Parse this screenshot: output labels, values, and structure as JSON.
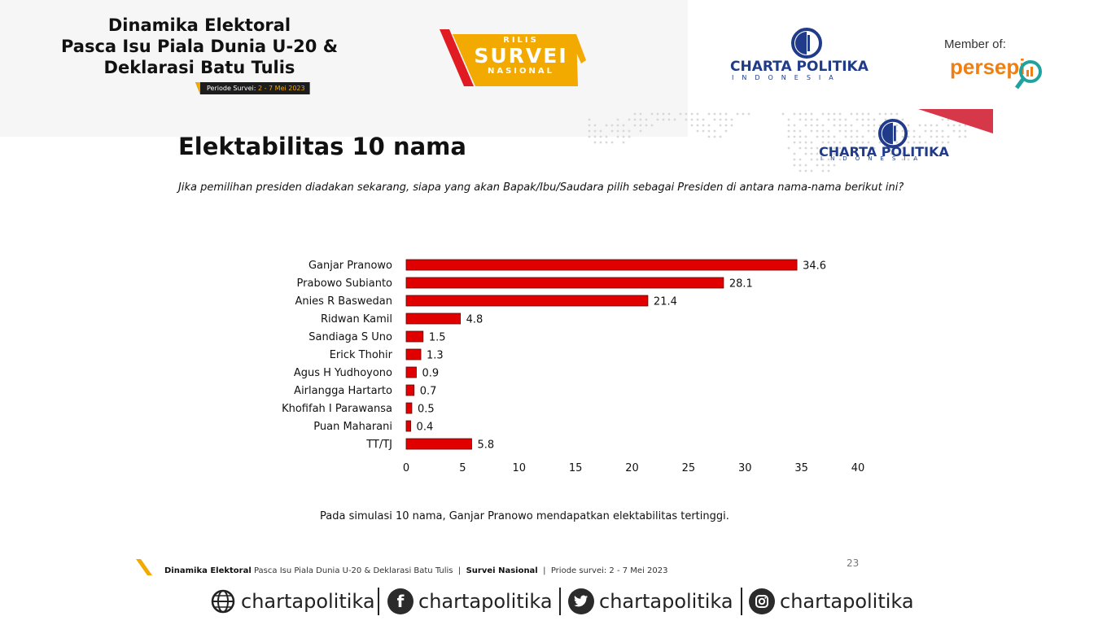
{
  "header": {
    "title_lines": [
      "Dinamika Elektoral",
      "Pasca Isu Piala Dunia U-20 &",
      "Deklarasi Batu Tulis"
    ],
    "period_label": "Periode Survei:",
    "period_value": "2 - 7 Mei 2023",
    "badge_small_top": "RILIS",
    "badge_big": "SURVEI",
    "badge_small_bottom": "NASIONAL",
    "brand_name": "CHARTA POLITIKA",
    "brand_sub": "INDONESIA",
    "member_label": "Member of:",
    "member_org": "persepi"
  },
  "slide": {
    "title": "Elektabilitas 10 nama",
    "question": "Jika pemilihan presiden diadakan sekarang, siapa yang akan Bapak/Ibu/Saudara pilih sebagai Presiden di antara nama-nama berikut ini?",
    "conclusion": "Pada simulasi 10 nama, Ganjar Pranowo mendapatkan elektabilitas tertinggi.",
    "page_number": "23",
    "brand_name": "CHARTA POLITIKA",
    "brand_sub": "INDONESIA"
  },
  "chart_data": {
    "type": "bar",
    "orientation": "horizontal",
    "categories": [
      "Ganjar Pranowo",
      "Prabowo Subianto",
      "Anies R Baswedan",
      "Ridwan Kamil",
      "Sandiaga S Uno",
      "Erick Thohir",
      "Agus H Yudhoyono",
      "Airlangga Hartarto",
      "Khofifah I Parawansa",
      "Puan Maharani",
      "TT/TJ"
    ],
    "values": [
      34.6,
      28.1,
      21.4,
      4.8,
      1.5,
      1.3,
      0.9,
      0.7,
      0.5,
      0.4,
      5.8
    ],
    "value_labels": [
      "34.6",
      "28.1",
      "21.4",
      "4.8",
      "1.5",
      "1.3",
      "0.9",
      "0.7",
      "0.5",
      "0.4",
      "5.8"
    ],
    "xlim": [
      0,
      40
    ],
    "xticks": [
      "0",
      "5",
      "10",
      "15",
      "20",
      "25",
      "30",
      "35",
      "40"
    ],
    "title": "",
    "xlabel": "",
    "ylabel": "",
    "grid": false,
    "bar_color": "#e00000"
  },
  "footer": {
    "bold_part": "Dinamika Elektoral",
    "rest_part": "Pasca Isu Piala Dunia U-20 & Deklarasi Batu Tulis",
    "sep1": "|",
    "survey_label": "Survei Nasional",
    "sep2": "|",
    "period": "Priode survei: 2 - 7 Mei 2023"
  },
  "social": [
    {
      "icon": "globe-icon",
      "handle": "chartapolitika"
    },
    {
      "icon": "facebook-icon",
      "handle": "chartapolitika"
    },
    {
      "icon": "twitter-icon",
      "handle": "chartapolitika"
    },
    {
      "icon": "instagram-icon",
      "handle": "chartapolitika"
    }
  ],
  "colors": {
    "accent_red": "#e00000",
    "accent_yellow": "#f2a900",
    "brand_blue": "#1f3b8a",
    "persepi_orange": "#f07f13"
  }
}
